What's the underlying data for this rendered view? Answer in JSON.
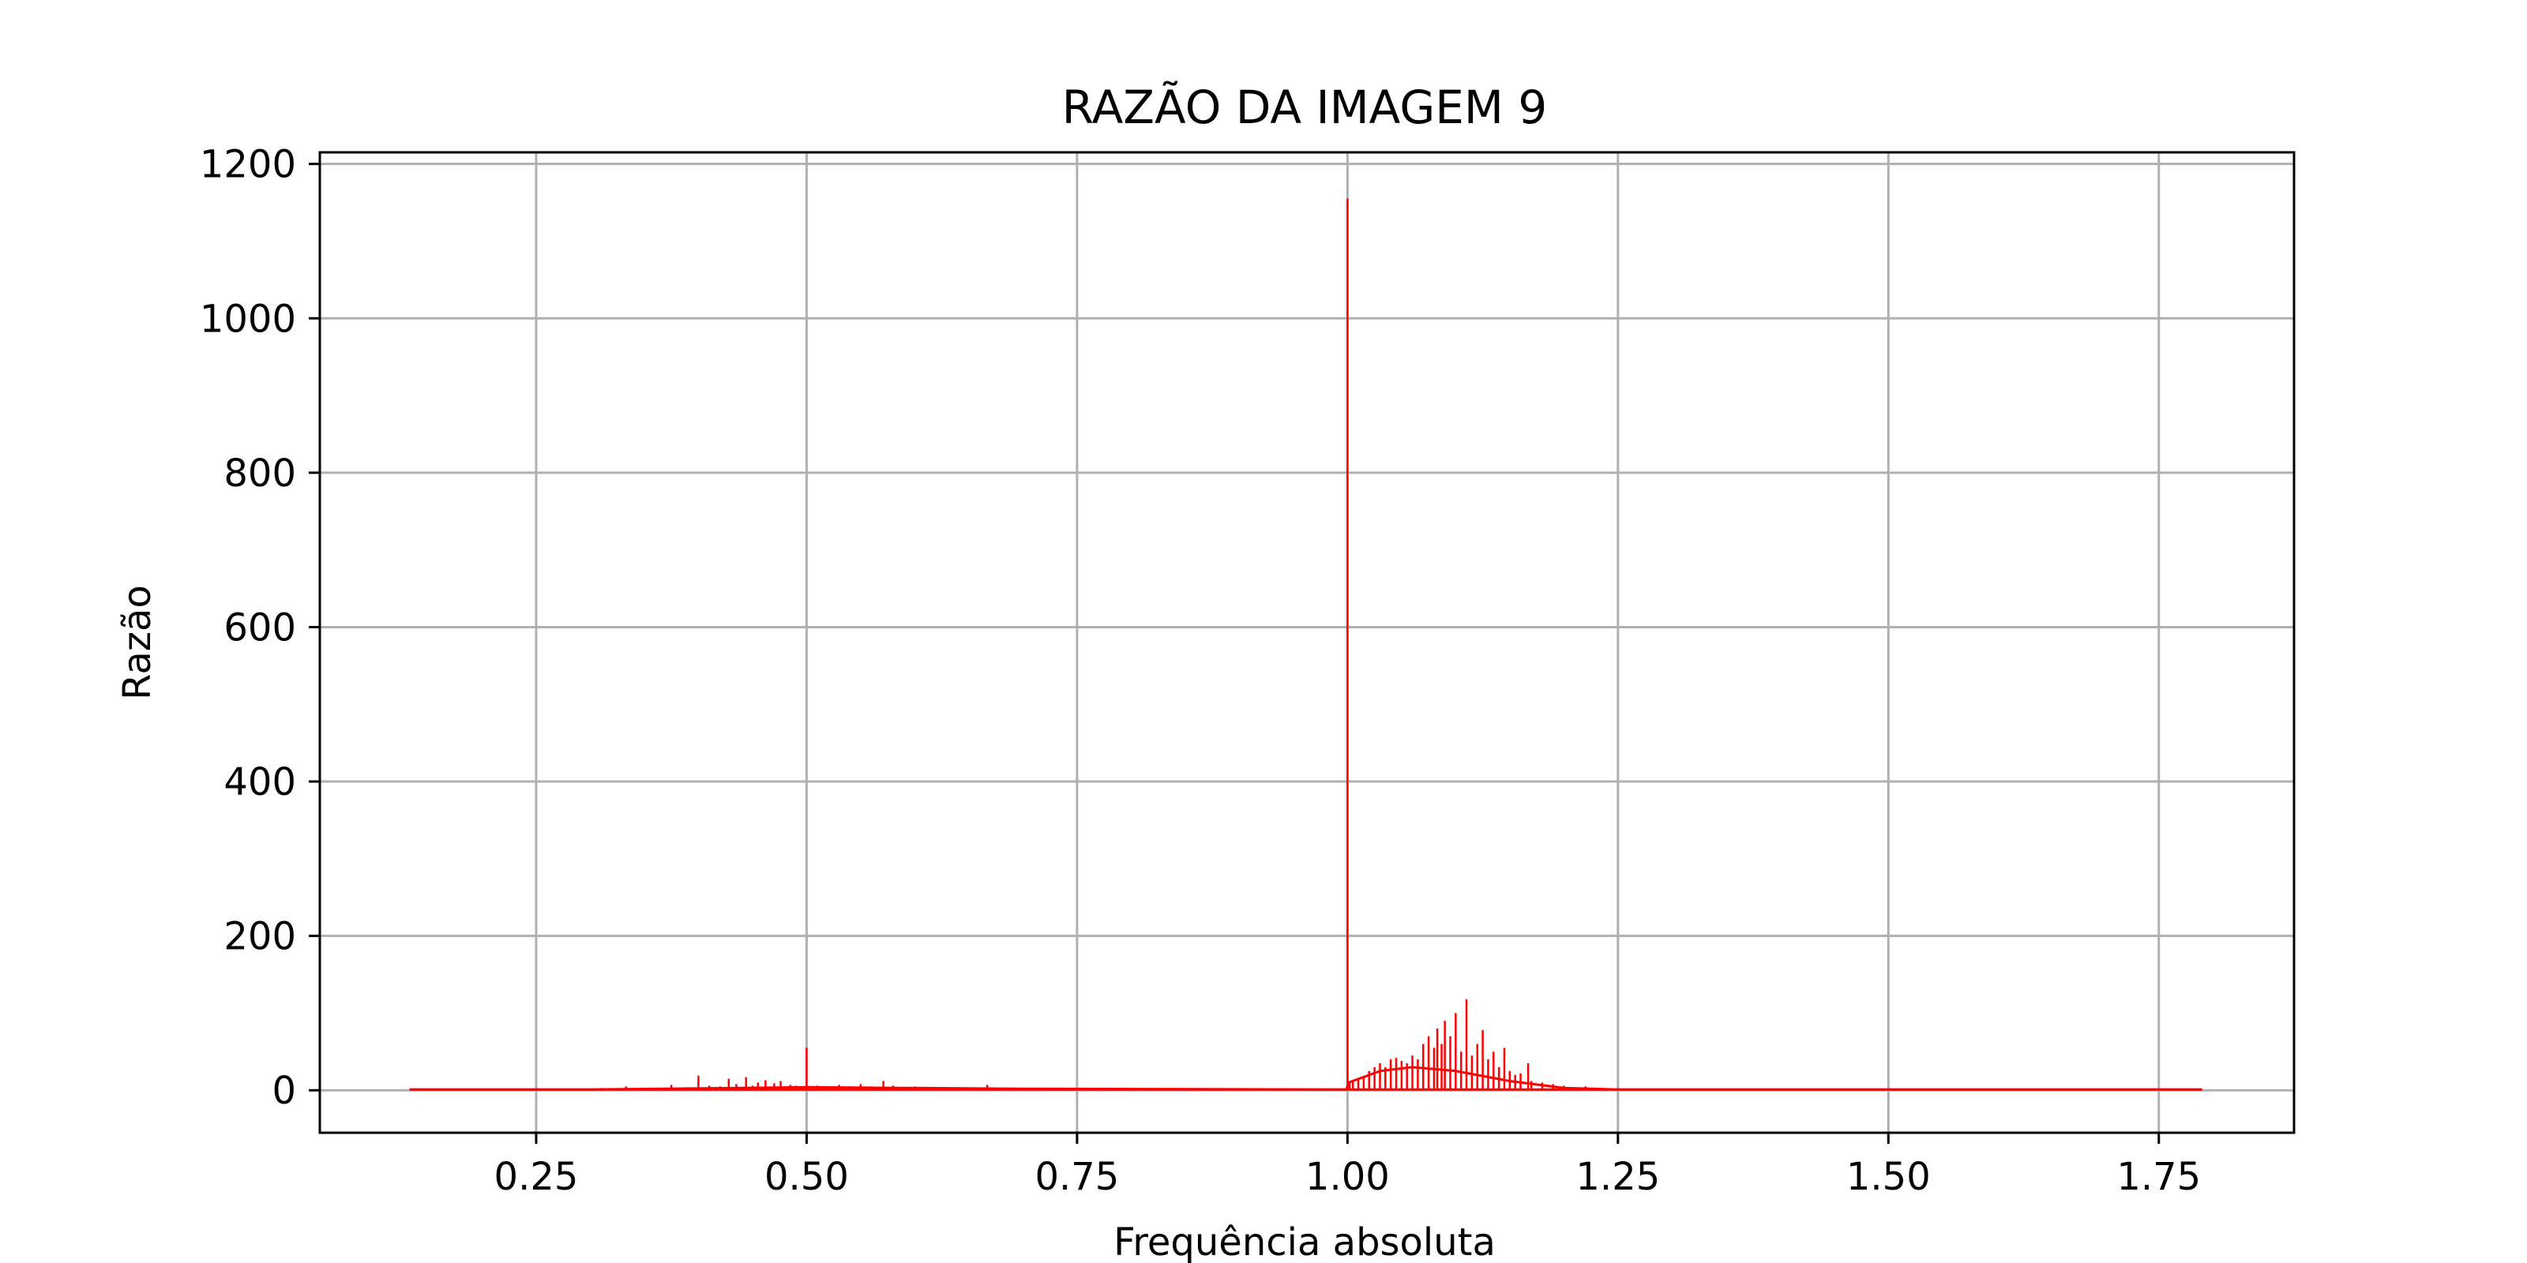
{
  "chart_data": {
    "type": "line",
    "title": "RAZÃO DA IMAGEM 9",
    "xlabel": "Frequência absoluta",
    "ylabel": "Razão",
    "xlim": [
      0.05,
      1.875
    ],
    "ylim": [
      -55,
      1215
    ],
    "xticks": [
      0.25,
      0.5,
      0.75,
      1.0,
      1.25,
      1.5,
      1.75
    ],
    "xtick_labels": [
      "0.25",
      "0.50",
      "0.75",
      "1.00",
      "1.25",
      "1.50",
      "1.75"
    ],
    "yticks": [
      0,
      200,
      400,
      600,
      800,
      1000,
      1200
    ],
    "ytick_labels": [
      "0",
      "200",
      "400",
      "600",
      "800",
      "1000",
      "1200"
    ],
    "grid": true,
    "colors": {
      "series": "#ff0000",
      "grid": "#b0b0b0",
      "axes": "#000000"
    },
    "series": [
      {
        "color": "#ff0000",
        "baseline": {
          "x_start": 0.133,
          "x_end": 1.79,
          "y": 1
        },
        "spikes": [
          {
            "x": 0.29,
            "y": 2
          },
          {
            "x": 0.31,
            "y": 3
          },
          {
            "x": 0.333,
            "y": 5
          },
          {
            "x": 0.35,
            "y": 3
          },
          {
            "x": 0.375,
            "y": 7
          },
          {
            "x": 0.39,
            "y": 4
          },
          {
            "x": 0.4,
            "y": 19
          },
          {
            "x": 0.41,
            "y": 6
          },
          {
            "x": 0.42,
            "y": 5
          },
          {
            "x": 0.428,
            "y": 15
          },
          {
            "x": 0.435,
            "y": 8
          },
          {
            "x": 0.444,
            "y": 17
          },
          {
            "x": 0.45,
            "y": 6
          },
          {
            "x": 0.455,
            "y": 10
          },
          {
            "x": 0.462,
            "y": 13
          },
          {
            "x": 0.47,
            "y": 9
          },
          {
            "x": 0.476,
            "y": 12
          },
          {
            "x": 0.485,
            "y": 7
          },
          {
            "x": 0.49,
            "y": 6
          },
          {
            "x": 0.5,
            "y": 55
          },
          {
            "x": 0.51,
            "y": 6
          },
          {
            "x": 0.52,
            "y": 5
          },
          {
            "x": 0.53,
            "y": 7
          },
          {
            "x": 0.54,
            "y": 5
          },
          {
            "x": 0.55,
            "y": 8
          },
          {
            "x": 0.56,
            "y": 5
          },
          {
            "x": 0.571,
            "y": 12
          },
          {
            "x": 0.58,
            "y": 6
          },
          {
            "x": 0.59,
            "y": 4
          },
          {
            "x": 0.6,
            "y": 5
          },
          {
            "x": 0.62,
            "y": 4
          },
          {
            "x": 0.64,
            "y": 3
          },
          {
            "x": 0.667,
            "y": 7
          },
          {
            "x": 0.7,
            "y": 3
          },
          {
            "x": 0.75,
            "y": 2
          },
          {
            "x": 0.8,
            "y": 2
          },
          {
            "x": 0.9,
            "y": 2
          },
          {
            "x": 0.95,
            "y": 2
          },
          {
            "x": 1.0,
            "y": 1155
          },
          {
            "x": 1.002,
            "y": 10
          },
          {
            "x": 1.005,
            "y": 12
          },
          {
            "x": 1.01,
            "y": 15
          },
          {
            "x": 1.015,
            "y": 18
          },
          {
            "x": 1.02,
            "y": 25
          },
          {
            "x": 1.025,
            "y": 30
          },
          {
            "x": 1.03,
            "y": 35
          },
          {
            "x": 1.035,
            "y": 30
          },
          {
            "x": 1.04,
            "y": 40
          },
          {
            "x": 1.045,
            "y": 42
          },
          {
            "x": 1.05,
            "y": 38
          },
          {
            "x": 1.055,
            "y": 35
          },
          {
            "x": 1.06,
            "y": 45
          },
          {
            "x": 1.065,
            "y": 40
          },
          {
            "x": 1.07,
            "y": 60
          },
          {
            "x": 1.075,
            "y": 70
          },
          {
            "x": 1.08,
            "y": 55
          },
          {
            "x": 1.083,
            "y": 80
          },
          {
            "x": 1.087,
            "y": 60
          },
          {
            "x": 1.09,
            "y": 90
          },
          {
            "x": 1.095,
            "y": 70
          },
          {
            "x": 1.1,
            "y": 100
          },
          {
            "x": 1.105,
            "y": 50
          },
          {
            "x": 1.11,
            "y": 118
          },
          {
            "x": 1.115,
            "y": 45
          },
          {
            "x": 1.12,
            "y": 60
          },
          {
            "x": 1.125,
            "y": 78
          },
          {
            "x": 1.13,
            "y": 40
          },
          {
            "x": 1.135,
            "y": 50
          },
          {
            "x": 1.14,
            "y": 30
          },
          {
            "x": 1.145,
            "y": 55
          },
          {
            "x": 1.15,
            "y": 25
          },
          {
            "x": 1.155,
            "y": 20
          },
          {
            "x": 1.16,
            "y": 22
          },
          {
            "x": 1.167,
            "y": 35
          },
          {
            "x": 1.17,
            "y": 12
          },
          {
            "x": 1.18,
            "y": 10
          },
          {
            "x": 1.19,
            "y": 8
          },
          {
            "x": 1.2,
            "y": 6
          },
          {
            "x": 1.21,
            "y": 4
          },
          {
            "x": 1.22,
            "y": 5
          },
          {
            "x": 1.23,
            "y": 3
          },
          {
            "x": 1.25,
            "y": 2
          },
          {
            "x": 1.3,
            "y": 2
          }
        ],
        "envelope": [
          {
            "x": 0.133,
            "y": 1
          },
          {
            "x": 0.3,
            "y": 1
          },
          {
            "x": 0.5,
            "y": 4
          },
          {
            "x": 0.6,
            "y": 3
          },
          {
            "x": 0.7,
            "y": 2
          },
          {
            "x": 0.999,
            "y": 1
          },
          {
            "x": 1.001,
            "y": 10
          },
          {
            "x": 1.03,
            "y": 25
          },
          {
            "x": 1.06,
            "y": 30
          },
          {
            "x": 1.1,
            "y": 25
          },
          {
            "x": 1.15,
            "y": 12
          },
          {
            "x": 1.2,
            "y": 3
          },
          {
            "x": 1.25,
            "y": 1
          },
          {
            "x": 1.79,
            "y": 1
          }
        ]
      }
    ]
  }
}
